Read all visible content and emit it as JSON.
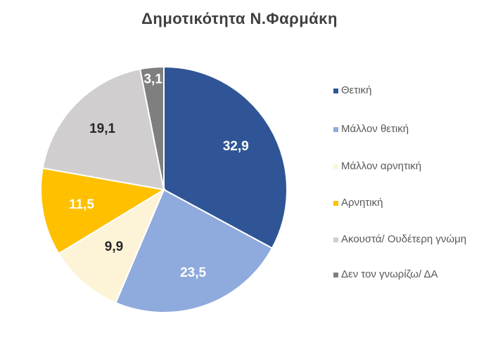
{
  "chart_data": {
    "type": "pie",
    "title": "Δημοτικότητα Ν.Φαρμάκη",
    "legend_position": "right",
    "slices": [
      {
        "name": "Θετική",
        "value": 32.9,
        "label": "32,9",
        "color": "#2f5597",
        "label_color": "#ffffff"
      },
      {
        "name": "Μάλλον θετική",
        "value": 23.5,
        "label": "23,5",
        "color": "#8faadc",
        "label_color": "#ffffff"
      },
      {
        "name": "Μάλλον αρνητική",
        "value": 9.9,
        "label": "9,9",
        "color": "#fdf4d8",
        "label_color": "#262626"
      },
      {
        "name": "Αρνητική",
        "value": 11.5,
        "label": "11,5",
        "color": "#ffc000",
        "label_color": "#ffffff"
      },
      {
        "name": "Ακουστά/ Ουδέτερη γνώμη",
        "value": 19.1,
        "label": "19,1",
        "color": "#d0cece",
        "label_color": "#262626"
      },
      {
        "name": "Δεν τον γνωρίζω/ ΔΑ",
        "value": 3.1,
        "label": "3,1",
        "color": "#7f7f7f",
        "label_color": "#ffffff"
      }
    ]
  }
}
